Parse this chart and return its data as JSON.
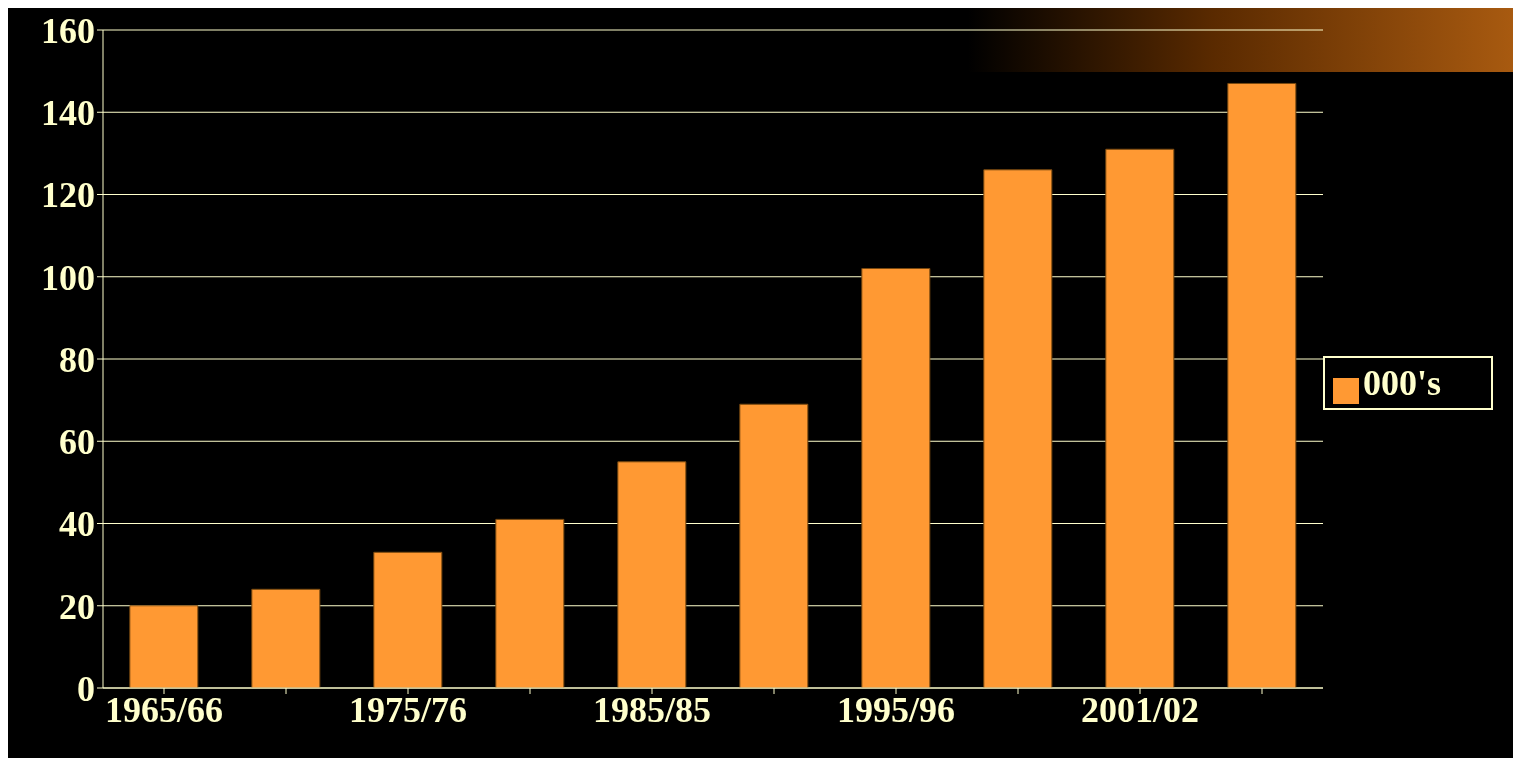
{
  "chart_data": {
    "type": "bar",
    "categories": [
      "1965/66",
      null,
      "1975/76",
      null,
      "1985/85",
      null,
      "1995/96",
      null,
      "2001/02",
      null
    ],
    "series": [
      {
        "name": "000's",
        "color": "#ff9933",
        "values": [
          20,
          24,
          33,
          41,
          55,
          69,
          102,
          126,
          131,
          147
        ]
      }
    ],
    "ylim": [
      0,
      160
    ],
    "yticks": [
      0,
      20,
      40,
      60,
      80,
      100,
      120,
      140,
      160
    ],
    "grid": "y",
    "legend": "right"
  }
}
